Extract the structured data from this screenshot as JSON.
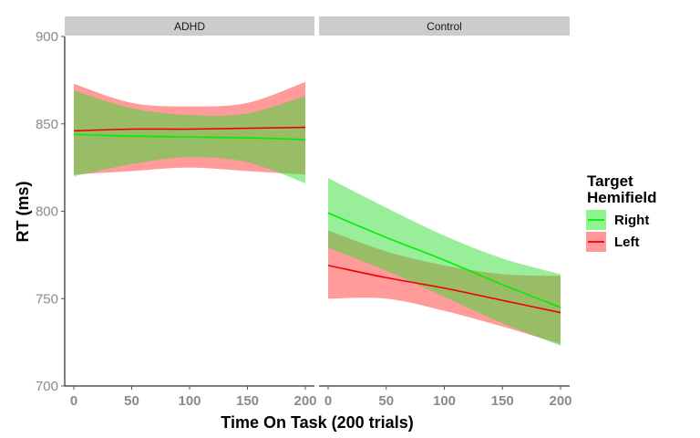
{
  "chart_data": {
    "type": "line",
    "ylabel": "RT (ms)",
    "xlabel": "Time On Task (200 trials)",
    "ylim": [
      700,
      900
    ],
    "xlim": [
      0,
      200
    ],
    "y_ticks": [
      700,
      750,
      800,
      850,
      900
    ],
    "x_ticks": [
      0,
      50,
      100,
      150,
      200
    ],
    "legend": {
      "title_line1": "Target",
      "title_line2": "Hemifield",
      "position": "right",
      "items": [
        {
          "name": "Right",
          "color": "#00ee00",
          "fill": "#8ef58e"
        },
        {
          "name": "Left",
          "color": "#ee0000",
          "fill": "#ff9999"
        }
      ]
    },
    "panels": [
      {
        "strip": "ADHD",
        "series": [
          {
            "name": "Right",
            "x": [
              0,
              50,
              100,
              150,
              200
            ],
            "fit": [
              844,
              843,
              842.5,
              842,
              841
            ],
            "lower": [
              820,
              827,
              831,
              828,
              816
            ],
            "upper": [
              869,
              859,
              855,
              856,
              866
            ]
          },
          {
            "name": "Left",
            "x": [
              0,
              50,
              100,
              150,
              200
            ],
            "fit": [
              846,
              847,
              847,
              847.5,
              848
            ],
            "lower": [
              821,
              823,
              825,
              823,
              821
            ],
            "upper": [
              873,
              862,
              860,
              862,
              874
            ]
          }
        ]
      },
      {
        "strip": "Control",
        "series": [
          {
            "name": "Right",
            "x": [
              0,
              50,
              100,
              150,
              200
            ],
            "fit": [
              799,
              785,
              772,
              758,
              745
            ],
            "lower": [
              779,
              766,
              751,
              736,
              723
            ],
            "upper": [
              819,
              802,
              786,
              773,
              764
            ]
          },
          {
            "name": "Left",
            "x": [
              0,
              50,
              100,
              150,
              200
            ],
            "fit": [
              769,
              762,
              756,
              749,
              742
            ],
            "lower": [
              750,
              750,
              743,
              734,
              724
            ],
            "upper": [
              789,
              777,
              769,
              764,
              763
            ]
          }
        ]
      }
    ]
  }
}
